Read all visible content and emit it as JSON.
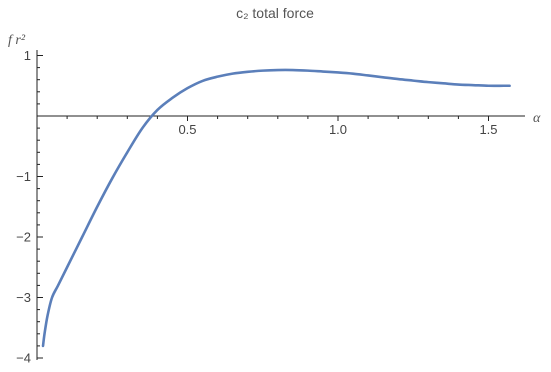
{
  "chart_data": {
    "type": "line",
    "title": "c₂ total force",
    "xlabel": "α",
    "ylabel": "f r²",
    "xlim": [
      0,
      1.6
    ],
    "ylim": [
      -4.05,
      1.05
    ],
    "grid": false,
    "axis_color": "#222222",
    "x_ticks": [
      {
        "value": 0.5,
        "label": "0.5"
      },
      {
        "value": 1.0,
        "label": "1.0"
      },
      {
        "value": 1.5,
        "label": "1.5"
      }
    ],
    "y_ticks": [
      {
        "value": 1,
        "label": "1"
      },
      {
        "value": -1,
        "label": "−1"
      },
      {
        "value": -2,
        "label": "−2"
      },
      {
        "value": -3,
        "label": "−3"
      },
      {
        "value": -4,
        "label": "−4"
      }
    ],
    "series": [
      {
        "color": "#5b7fba",
        "x": [
          0.02,
          0.025,
          0.035,
          0.05,
          0.07,
          0.1,
          0.15,
          0.2,
          0.25,
          0.3,
          0.35,
          0.4,
          0.45,
          0.5,
          0.55,
          0.6,
          0.65,
          0.7,
          0.75,
          0.8,
          0.85,
          0.9,
          0.95,
          1.0,
          1.05,
          1.1,
          1.15,
          1.2,
          1.25,
          1.3,
          1.35,
          1.4,
          1.45,
          1.5,
          1.55,
          1.57
        ],
        "y": [
          -3.8,
          -3.6,
          -3.3,
          -3.0,
          -2.8,
          -2.5,
          -2.0,
          -1.5,
          -1.03,
          -0.6,
          -0.2,
          0.1,
          0.3,
          0.46,
          0.58,
          0.65,
          0.7,
          0.73,
          0.75,
          0.76,
          0.76,
          0.75,
          0.735,
          0.72,
          0.7,
          0.67,
          0.64,
          0.61,
          0.585,
          0.56,
          0.54,
          0.52,
          0.51,
          0.5,
          0.5,
          0.5
        ]
      }
    ]
  }
}
